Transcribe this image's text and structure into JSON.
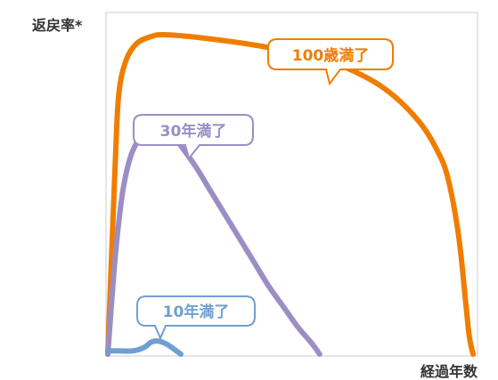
{
  "chart_data": {
    "type": "line",
    "ylabel": "返戻率*",
    "xlabel": "経過年数",
    "xlim": [
      0,
      100
    ],
    "ylim": [
      0,
      100
    ],
    "grid": false,
    "colors": {
      "frame": "#cccccc"
    },
    "series": [
      {
        "name": "100歳満了",
        "color": "#f07d00",
        "x": [
          0,
          2,
          3,
          5,
          8,
          12,
          15,
          22,
          30,
          40,
          50,
          60,
          67,
          74,
          80,
          86,
          90,
          93,
          96,
          98,
          99,
          100
        ],
        "y": [
          0,
          55,
          76,
          86,
          91,
          93,
          93.5,
          93,
          92,
          90.5,
          88.5,
          86,
          83,
          79,
          74,
          67,
          60,
          52,
          35,
          15,
          5,
          0
        ]
      },
      {
        "name": "30年満了",
        "color": "#9b8ec4",
        "x": [
          0,
          2,
          4,
          6,
          8,
          10,
          12,
          14,
          16,
          18,
          20,
          24,
          28,
          32,
          36,
          40,
          44,
          48,
          52,
          56,
          58
        ],
        "y": [
          0,
          28,
          47,
          57,
          62,
          64,
          65.5,
          66,
          65.5,
          64,
          61,
          55,
          48,
          41,
          34,
          27,
          20,
          14,
          8,
          3,
          0
        ]
      },
      {
        "name": "10年満了",
        "color": "#6f9fd1",
        "x": [
          0,
          3,
          7,
          10,
          12,
          14,
          16,
          18,
          20
        ],
        "y": [
          1,
          1,
          1,
          2,
          3.6,
          3.8,
          3,
          1.6,
          0
        ]
      }
    ]
  }
}
